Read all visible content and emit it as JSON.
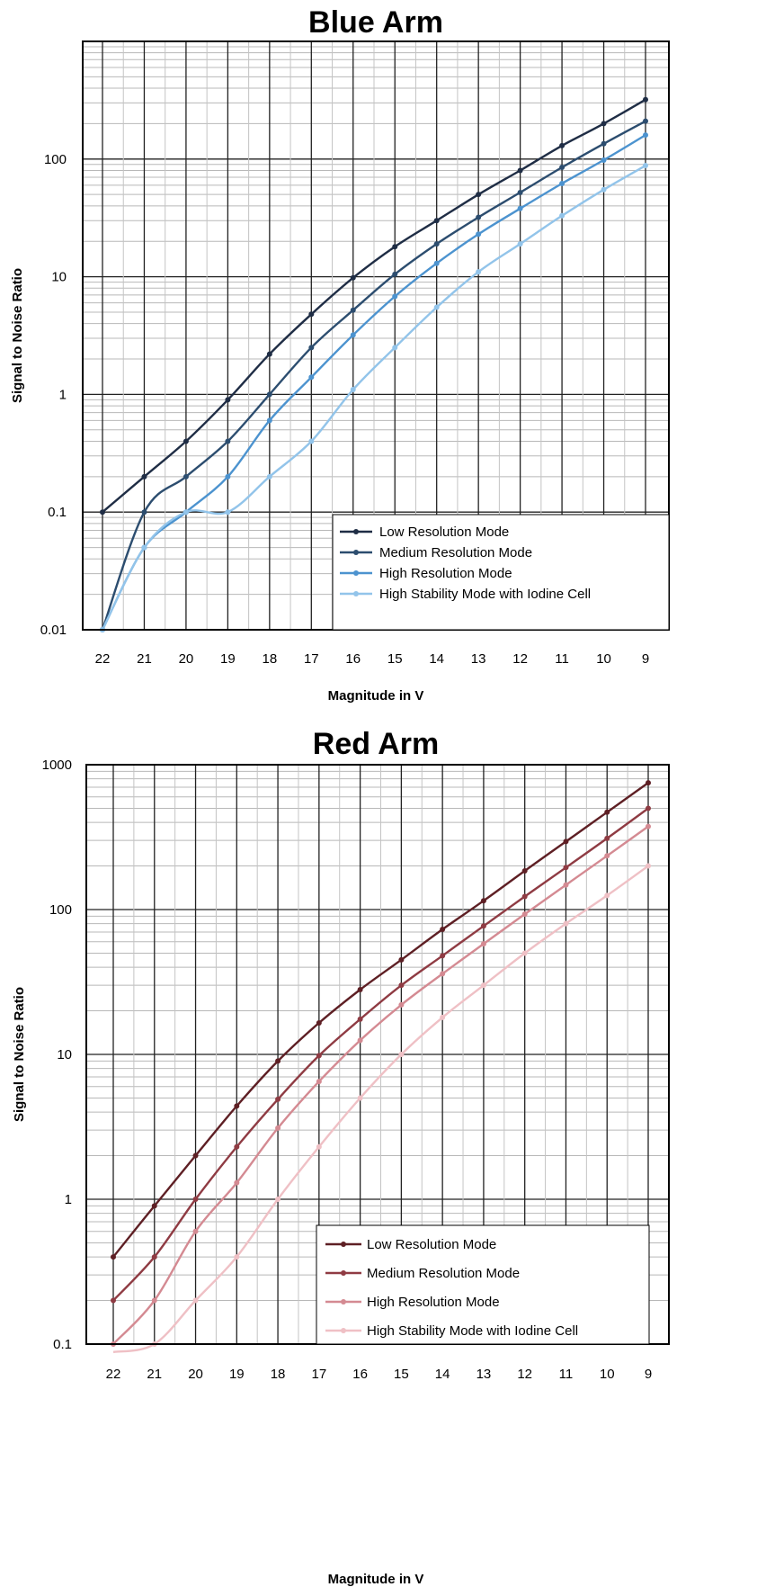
{
  "chart_data": [
    {
      "type": "line",
      "title": "Blue Arm",
      "xlabel": "Magnitude in V",
      "ylabel": "Signal to Noise Ratio",
      "y_scale": "log",
      "ylim": [
        0.01,
        1000
      ],
      "xlim": [
        22,
        9
      ],
      "x_reversed": true,
      "grid": true,
      "legend_position": "bottom-right",
      "x": [
        22,
        21,
        20,
        19,
        18,
        17,
        16,
        15,
        14,
        13,
        12,
        11,
        10,
        9
      ],
      "x_tick_labels": [
        "22",
        "21",
        "20",
        "19",
        "18",
        "17",
        "16",
        "15",
        "14",
        "13",
        "12",
        "11",
        "10",
        "9"
      ],
      "y_ticks": [
        0.01,
        0.1,
        1,
        10,
        100
      ],
      "y_tick_labels": [
        "0.01",
        "0.1",
        "1",
        "10",
        "100"
      ],
      "series": [
        {
          "name": "Low Resolution Mode",
          "color": "#1f2d45",
          "values": [
            0.1,
            0.2,
            0.4,
            0.9,
            2.2,
            4.8,
            9.8,
            18,
            30,
            50,
            80,
            130,
            200,
            320
          ]
        },
        {
          "name": "Medium Resolution Mode",
          "color": "#2c4d6f",
          "values": [
            0.01,
            0.1,
            0.2,
            0.4,
            1.0,
            2.5,
            5.2,
            10.5,
            19,
            32,
            52,
            85,
            135,
            210
          ]
        },
        {
          "name": "High Resolution Mode",
          "color": "#4c93cf",
          "values": [
            0.01,
            0.05,
            0.1,
            0.2,
            0.6,
            1.4,
            3.2,
            6.8,
            13,
            23,
            38,
            62,
            98,
            160
          ]
        },
        {
          "name": "High Stability Mode with Iodine Cell",
          "color": "#92c4ea",
          "values": [
            0.01,
            0.05,
            0.1,
            0.1,
            0.2,
            0.4,
            1.1,
            2.5,
            5.5,
            11,
            19,
            33,
            55,
            88
          ]
        }
      ]
    },
    {
      "type": "line",
      "title": "Red Arm",
      "xlabel": "Magnitude in V",
      "ylabel": "Signal to Noise Ratio",
      "y_scale": "log",
      "ylim": [
        0.1,
        1000
      ],
      "xlim": [
        22,
        9
      ],
      "x_reversed": true,
      "grid": true,
      "legend_position": "bottom-right",
      "x": [
        22,
        21,
        20,
        19,
        18,
        17,
        16,
        15,
        14,
        13,
        12,
        11,
        10,
        9
      ],
      "x_tick_labels": [
        "22",
        "21",
        "20",
        "19",
        "18",
        "17",
        "16",
        "15",
        "14",
        "13",
        "12",
        "11",
        "10",
        "9"
      ],
      "y_ticks": [
        0.1,
        1,
        10,
        100,
        1000
      ],
      "y_tick_labels": [
        "0.1",
        "1",
        "10",
        "100",
        "1000"
      ],
      "series": [
        {
          "name": "Low Resolution Mode",
          "color": "#5e1f24",
          "values": [
            0.4,
            0.9,
            2,
            4.4,
            9,
            16.5,
            28,
            45,
            73,
            115,
            185,
            295,
            470,
            750
          ]
        },
        {
          "name": "Medium Resolution Mode",
          "color": "#8f3b43",
          "values": [
            0.2,
            0.4,
            1.0,
            2.3,
            4.9,
            9.8,
            17.5,
            30,
            48,
            77,
            123,
            195,
            310,
            500
          ]
        },
        {
          "name": "High Resolution Mode",
          "color": "#d48a92",
          "values": [
            0.1,
            0.2,
            0.6,
            1.3,
            3.1,
            6.5,
            12.5,
            22,
            36,
            58,
            93,
            148,
            235,
            375
          ]
        },
        {
          "name": "High Stability Mode with Iodine Cell",
          "color": "#efc0c5",
          "values": [
            0.05,
            0.1,
            0.2,
            0.4,
            1.0,
            2.3,
            5,
            10,
            18,
            30,
            50,
            80,
            125,
            200
          ]
        }
      ]
    }
  ]
}
